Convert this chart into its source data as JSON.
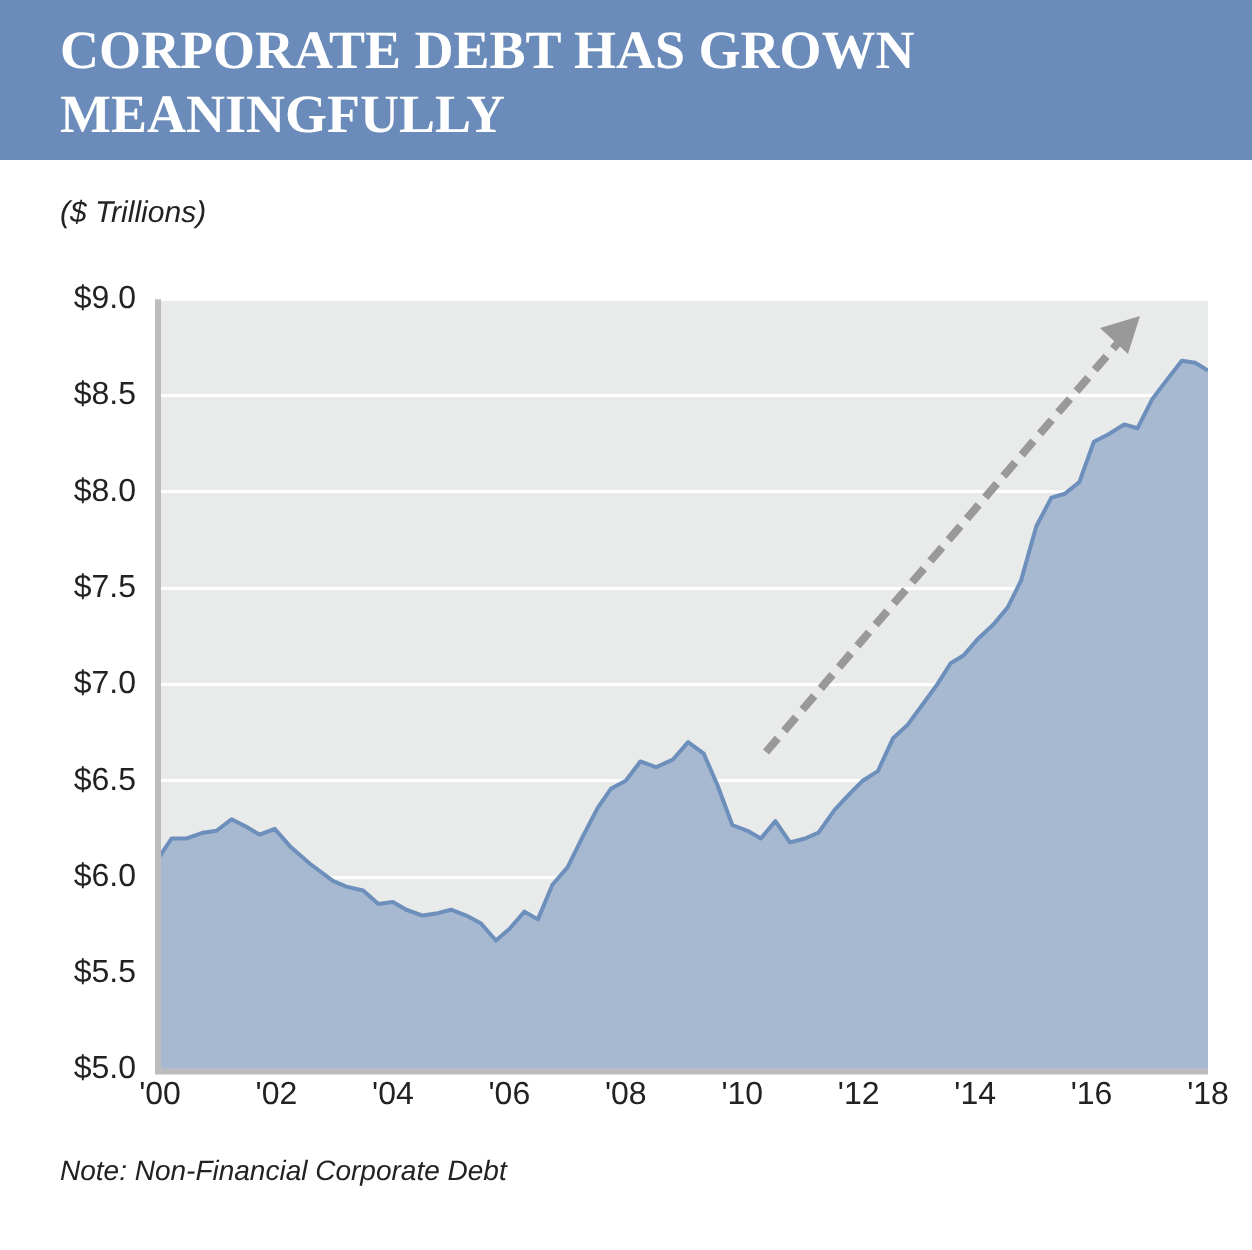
{
  "chart_data": {
    "type": "area",
    "title": "CORPORATE DEBT HAS GROWN MEANINGFULLY",
    "ylabel": "($ Trillions)",
    "annotations": [
      "Note: Non-Financial Corporate Debt"
    ],
    "x": [
      2000.0,
      2000.2,
      2000.46,
      2000.74,
      2000.97,
      2001.23,
      2001.49,
      2001.71,
      2001.97,
      2002.23,
      2002.57,
      2002.97,
      2003.2,
      2003.49,
      2003.75,
      2004.0,
      2004.23,
      2004.51,
      2004.74,
      2005.0,
      2005.26,
      2005.51,
      2005.77,
      2006.0,
      2006.26,
      2006.49,
      2006.74,
      2007.0,
      2007.26,
      2007.52,
      2007.75,
      2008.0,
      2008.25,
      2008.52,
      2008.81,
      2009.07,
      2009.34,
      2009.57,
      2009.83,
      2010.09,
      2010.32,
      2010.57,
      2010.82,
      2011.08,
      2011.31,
      2011.59,
      2011.84,
      2012.07,
      2012.33,
      2012.59,
      2012.84,
      2013.06,
      2013.35,
      2013.58,
      2013.8,
      2014.06,
      2014.31,
      2014.56,
      2014.79,
      2015.05,
      2015.31,
      2015.54,
      2015.79,
      2016.04,
      2016.3,
      2016.56,
      2016.79,
      2017.04,
      2017.29,
      2017.55,
      2017.78,
      2018.0
    ],
    "series": [
      {
        "color": "#6d8fbb",
        "values": [
          6.11,
          6.2,
          6.2,
          6.23,
          6.24,
          6.3,
          6.26,
          6.22,
          6.25,
          6.16,
          6.07,
          5.98,
          5.95,
          5.93,
          5.86,
          5.87,
          5.83,
          5.8,
          5.81,
          5.83,
          5.8,
          5.76,
          5.67,
          5.73,
          5.82,
          5.78,
          5.96,
          6.05,
          6.21,
          6.36,
          6.46,
          6.5,
          6.6,
          6.57,
          6.61,
          6.7,
          6.64,
          6.48,
          6.27,
          6.24,
          6.2,
          6.29,
          6.18,
          6.2,
          6.23,
          6.35,
          6.43,
          6.5,
          6.55,
          6.72,
          6.79,
          6.88,
          7.0,
          7.11,
          7.15,
          7.24,
          7.31,
          7.4,
          7.54,
          7.82,
          7.97,
          7.99,
          8.05,
          8.26,
          8.3,
          8.35,
          8.33,
          8.48,
          8.58,
          8.68,
          8.67,
          8.63
        ]
      }
    ],
    "xlim": [
      2000,
      2018
    ],
    "xticks": [
      {
        "value": 2000,
        "label": "'00"
      },
      {
        "value": 2002,
        "label": "'02"
      },
      {
        "value": 2004,
        "label": "'04"
      },
      {
        "value": 2006,
        "label": "'06"
      },
      {
        "value": 2008,
        "label": "'08"
      },
      {
        "value": 2010,
        "label": "'10"
      },
      {
        "value": 2012,
        "label": "'12"
      },
      {
        "value": 2014,
        "label": "'14"
      },
      {
        "value": 2016,
        "label": "'16"
      },
      {
        "value": 2018,
        "label": "'18"
      }
    ],
    "ylim": [
      5,
      9
    ],
    "yticks": [
      {
        "value": 5,
        "label": "$5.0"
      },
      {
        "value": 5.5,
        "label": "$5.5"
      },
      {
        "value": 6,
        "label": "$6.0"
      },
      {
        "value": 6.5,
        "label": "$6.5"
      },
      {
        "value": 7,
        "label": "$7.0"
      },
      {
        "value": 7.5,
        "label": "$7.5"
      },
      {
        "value": 8,
        "label": "$8.0"
      },
      {
        "value": 8.5,
        "label": "$8.5"
      },
      {
        "value": 9,
        "label": "$9.0"
      }
    ],
    "grid": "y",
    "legend": false
  }
}
